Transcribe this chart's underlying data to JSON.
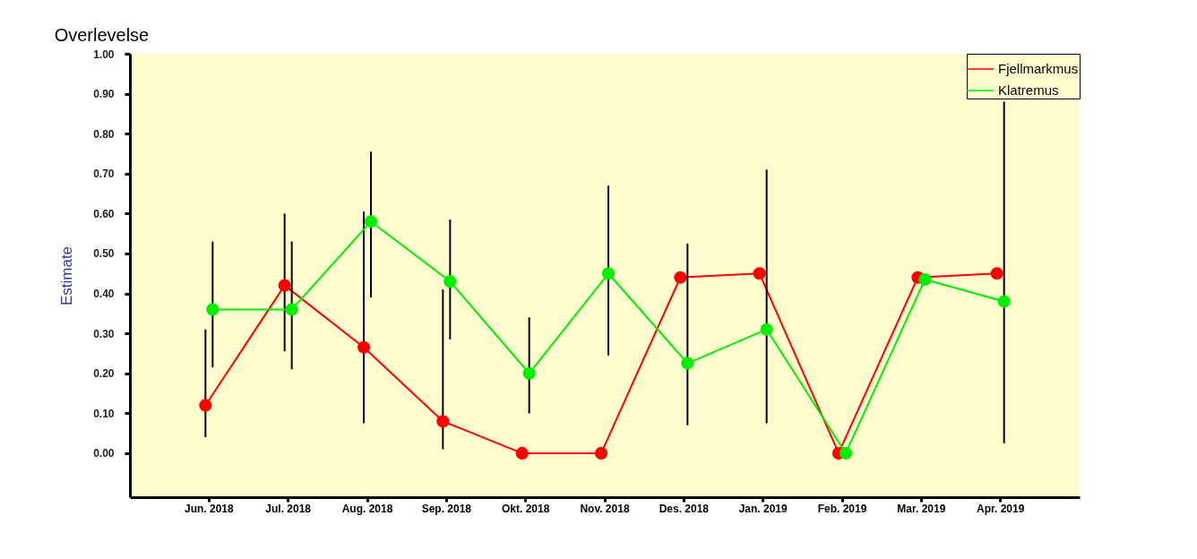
{
  "chart_data": {
    "type": "line",
    "title": "Overlevelse",
    "ylabel": "Estimate",
    "categories": [
      "Jun. 2018",
      "Jul. 2018",
      "Aug. 2018",
      "Sep. 2018",
      "Okt. 2018",
      "Nov. 2018",
      "Des. 2018",
      "Jan. 2019",
      "Feb. 2019",
      "Mar. 2019",
      "Apr. 2019"
    ],
    "series": [
      {
        "name": "Fjellmarkmus",
        "color": "#ff0000",
        "values": [
          0.12,
          0.42,
          0.265,
          0.08,
          0,
          0,
          0.44,
          0.45,
          0,
          0.44,
          0.45
        ],
        "errors": [
          [
            0.04,
            0.31
          ],
          [
            0.255,
            0.6
          ],
          [
            0.075,
            0.605
          ],
          [
            0.01,
            0.41
          ],
          null,
          null,
          null,
          null,
          null,
          null,
          null
        ]
      },
      {
        "name": "Klatremus",
        "color": "#00ee00",
        "values": [
          0.36,
          0.36,
          0.58,
          0.43,
          0.2,
          0.45,
          0.225,
          0.31,
          0,
          0.435,
          0.38
        ],
        "errors": [
          [
            0.215,
            0.53
          ],
          [
            0.21,
            0.53
          ],
          [
            0.39,
            0.755
          ],
          [
            0.285,
            0.585
          ],
          [
            0.1,
            0.34
          ],
          [
            0.245,
            0.67
          ],
          [
            0.07,
            0.525
          ],
          [
            0.075,
            0.71
          ],
          null,
          null,
          [
            0.025,
            0.88
          ]
        ]
      }
    ],
    "ylim": [
      -0.11,
      1.0
    ],
    "yticks": [
      {
        "value": 0,
        "label": "0.00"
      },
      {
        "value": 0.1,
        "label": "0.10"
      },
      {
        "value": 0.2,
        "label": "0.20"
      },
      {
        "value": 0.3,
        "label": "0.30"
      },
      {
        "value": 0.4,
        "label": "0.40"
      },
      {
        "value": 0.5,
        "label": "0.50"
      },
      {
        "value": 0.6,
        "label": "0.60"
      },
      {
        "value": 0.7,
        "label": "0.70"
      },
      {
        "value": 0.8,
        "label": "0.80"
      },
      {
        "value": 0.9,
        "label": "0.90"
      },
      {
        "value": 1.0,
        "label": "1.00"
      }
    ],
    "marker": "circle",
    "line_style": "solid",
    "grid": false,
    "legend": "top right"
  }
}
